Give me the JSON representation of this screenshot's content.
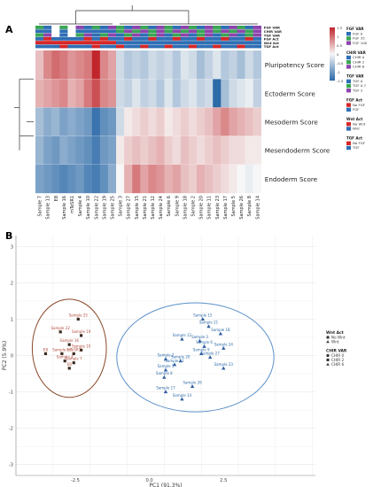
{
  "panel_labels": {
    "a": "A",
    "b": "B"
  },
  "chart_data": [
    {
      "type": "heatmap",
      "rows": [
        "Pluripotency Score",
        "Ectoderm Score",
        "Mesoderm Score",
        "Mesendoderm Score",
        "Endoderm Score"
      ],
      "columns": [
        "Sample 7",
        "Sample 13",
        "E8",
        "Sample 16",
        "mTeSR1",
        "Sample 4",
        "Sample 10",
        "Sample 22",
        "Sample 19",
        "Sample 25",
        "Sample 3",
        "Sample 27",
        "Sample 15",
        "Sample 21",
        "Sample 12",
        "Sample 24",
        "Sample 6",
        "Sample 9",
        "Sample 18",
        "Sample 2",
        "Sample 20",
        "Sample 11",
        "Sample 23",
        "Sample 17",
        "Sample 5",
        "Sample 26",
        "Sample 8",
        "Sample 14"
      ],
      "values": [
        [
          0.4,
          0.8,
          1.0,
          0.9,
          0.7,
          0.8,
          0.9,
          1.5,
          0.8,
          0.6,
          -0.3,
          -0.5,
          -0.4,
          -0.5,
          -0.3,
          -0.4,
          -0.3,
          -0.5,
          -0.2,
          -0.3,
          -0.6,
          -0.4,
          -0.2,
          -0.5,
          -0.4,
          -0.6,
          -0.3,
          -0.5
        ],
        [
          0.5,
          0.6,
          0.7,
          0.8,
          0.5,
          0.6,
          0.9,
          1.2,
          0.8,
          0.7,
          -0.3,
          -0.4,
          -0.2,
          -0.4,
          -0.3,
          -0.5,
          -0.2,
          -0.5,
          -0.3,
          -0.2,
          -0.4,
          -0.3,
          -1.6,
          -0.6,
          -0.3,
          -0.2,
          -0.1,
          -0.4
        ],
        [
          -0.6,
          -0.8,
          -0.7,
          -0.9,
          -0.8,
          -0.9,
          -1.0,
          -1.4,
          -1.1,
          -1.0,
          -0.3,
          0.1,
          0.2,
          0.3,
          0.2,
          0.3,
          0.1,
          0.2,
          0.3,
          0.2,
          0.3,
          0.4,
          0.6,
          0.8,
          0.6,
          0.5,
          0.4,
          0.3
        ],
        [
          -0.7,
          -0.9,
          -1.0,
          -0.8,
          -0.9,
          -1.0,
          -1.1,
          -1.3,
          -1.0,
          -0.9,
          0.1,
          0.3,
          0.4,
          0.3,
          0.4,
          0.5,
          0.3,
          0.2,
          0.4,
          0.3,
          0.2,
          0.3,
          0.4,
          0.3,
          0.2,
          0.2,
          0.1,
          0.1
        ],
        [
          -0.9,
          -1.0,
          -1.1,
          -1.2,
          -1.1,
          -1.0,
          -1.2,
          -1.3,
          -1.1,
          -0.8,
          0.0,
          0.5,
          0.9,
          0.6,
          0.8,
          0.7,
          0.5,
          0.6,
          0.4,
          0.3,
          0.5,
          0.4,
          0.3,
          0.2,
          0.1,
          0.0,
          -0.1,
          0.0
        ]
      ],
      "colorscale": {
        "min": -1.5,
        "max": 1.5,
        "low": "#2c6aa8",
        "mid": "#f7f7f7",
        "high": "#c0262b",
        "ticks": [
          "1.5",
          "1",
          "0.5",
          "0",
          "-0.5",
          "-1",
          "-1.5"
        ]
      },
      "annotation_rows": [
        "FGF VAR",
        "CHIR VAR",
        "TGF VAR",
        "FGF Act",
        "Wnt Act",
        "TGF Act"
      ],
      "annotation_colors": {
        "FGF VAR": {
          "FGF 0": "#2f6fb5",
          "FGF 35": "#3aa655",
          "FGF 100": "#8e44ad"
        },
        "CHIR VAR": {
          "CHIR 0": "#2f6fb5",
          "CHIR 2": "#3aa655",
          "CHIR 6": "#8e44ad"
        },
        "TGF VAR": {
          "TGF 0": "#2f6fb5",
          "TGF 0.7": "#3aa655",
          "TGF 2": "#8e44ad"
        },
        "FGF Act": {
          "No FGF": "#d62728",
          "FGF": "#2f6fb5"
        },
        "Wnt Act": {
          "No Wnt": "#d62728",
          "Wnt": "#2f6fb5"
        },
        "TGF Act": {
          "No FGF": "#d62728",
          "TGF": "#2f6fb5"
        }
      },
      "annotation_values": {
        "FGF VAR": [
          "FGF 35",
          "FGF 0",
          "",
          "FGF 35",
          "",
          "FGF 100",
          "FGF 0",
          "FGF 35",
          "FGF 0",
          "FGF 100",
          "FGF 35",
          "FGF 0",
          "FGF 100",
          "FGF 35",
          "FGF 0",
          "FGF 100",
          "FGF 35",
          "FGF 0",
          "FGF 100",
          "FGF 35",
          "FGF 0",
          "FGF 100",
          "FGF 35",
          "FGF 0",
          "FGF 100",
          "FGF 35",
          "FGF 0",
          "FGF 100"
        ],
        "CHIR VAR": [
          "CHIR 0",
          "CHIR 0",
          "",
          "CHIR 0",
          "",
          "CHIR 0",
          "CHIR 0",
          "CHIR 0",
          "CHIR 0",
          "CHIR 0",
          "CHIR 2",
          "CHIR 6",
          "CHIR 2",
          "CHIR 6",
          "CHIR 2",
          "CHIR 6",
          "CHIR 2",
          "CHIR 6",
          "CHIR 2",
          "CHIR 6",
          "CHIR 2",
          "CHIR 6",
          "CHIR 2",
          "CHIR 6",
          "CHIR 2",
          "CHIR 6",
          "CHIR 2",
          "CHIR 6"
        ],
        "TGF VAR": [
          "TGF 0.7",
          "TGF 2",
          "",
          "TGF 0",
          "",
          "TGF 0.7",
          "TGF 2",
          "TGF 0",
          "TGF 0.7",
          "TGF 2",
          "TGF 0",
          "TGF 0.7",
          "TGF 2",
          "TGF 0",
          "TGF 0.7",
          "TGF 2",
          "TGF 0",
          "TGF 0.7",
          "TGF 2",
          "TGF 0",
          "TGF 0.7",
          "TGF 2",
          "TGF 0",
          "TGF 0.7",
          "TGF 2",
          "TGF 0",
          "TGF 0.7",
          "TGF 2"
        ],
        "FGF Act": [
          "FGF",
          "No FGF",
          "FGF",
          "FGF",
          "FGF",
          "FGF",
          "No FGF",
          "FGF",
          "No FGF",
          "FGF",
          "FGF",
          "No FGF",
          "FGF",
          "FGF",
          "No FGF",
          "FGF",
          "FGF",
          "No FGF",
          "FGF",
          "FGF",
          "No FGF",
          "FGF",
          "FGF",
          "No FGF",
          "FGF",
          "FGF",
          "No FGF",
          "FGF"
        ],
        "Wnt Act": [
          "No Wnt",
          "No Wnt",
          "No Wnt",
          "No Wnt",
          "No Wnt",
          "No Wnt",
          "No Wnt",
          "No Wnt",
          "No Wnt",
          "No Wnt",
          "Wnt",
          "Wnt",
          "Wnt",
          "Wnt",
          "Wnt",
          "Wnt",
          "Wnt",
          "Wnt",
          "Wnt",
          "Wnt",
          "Wnt",
          "Wnt",
          "Wnt",
          "Wnt",
          "Wnt",
          "Wnt",
          "Wnt",
          "Wnt"
        ],
        "TGF Act": [
          "TGF",
          "TGF",
          "TGF",
          "No FGF",
          "TGF",
          "TGF",
          "TGF",
          "No FGF",
          "TGF",
          "TGF",
          "No FGF",
          "TGF",
          "TGF",
          "No FGF",
          "TGF",
          "TGF",
          "No FGF",
          "TGF",
          "TGF",
          "No FGF",
          "TGF",
          "TGF",
          "No FGF",
          "TGF",
          "TGF",
          "No FGF",
          "TGF",
          "TGF"
        ]
      },
      "legends": [
        {
          "title": "FGF VAR",
          "items": [
            "FGF 0",
            "FGF 35",
            "FGF 100"
          ]
        },
        {
          "title": "CHIR VAR",
          "items": [
            "CHIR 0",
            "CHIR 2",
            "CHIR 6"
          ]
        },
        {
          "title": "TGF VAR",
          "items": [
            "TGF 0",
            "TGF 0.7",
            "TGF 2"
          ]
        },
        {
          "title": "FGF Act",
          "items": [
            "No FGF",
            "FGF"
          ]
        },
        {
          "title": "Wnt Act",
          "items": [
            "No Wnt",
            "Wnt"
          ]
        },
        {
          "title": "TGF Act",
          "items": [
            "No FGF",
            "TGF"
          ]
        }
      ]
    },
    {
      "type": "scatter",
      "xlabel": "PC1 (91.3%)",
      "ylabel": "PC2 (5.9%)",
      "xlim": [
        -4.5,
        5.6
      ],
      "ylim": [
        -3.3,
        3.3
      ],
      "x_ticks": [
        "-2.5",
        "0.0",
        "2.5"
      ],
      "x_tick_values": [
        -2.5,
        0.0,
        2.5
      ],
      "y_ticks": [
        "3",
        "2",
        "1",
        "0",
        "-1",
        "-2",
        "-3"
      ],
      "y_tick_values": [
        3,
        2,
        1,
        0,
        -1,
        -2,
        -3
      ],
      "grid": true,
      "legend_position": "right",
      "legend": [
        {
          "title": "Wnt Act",
          "items": [
            {
              "label": "No Wnt",
              "shape": "square"
            },
            {
              "label": "Wnt",
              "shape": "triangle"
            }
          ]
        },
        {
          "title": "CHIR VAR",
          "items": [
            {
              "label": "CHIR 0",
              "shape": "circle"
            },
            {
              "label": "CHIR 2",
              "shape": "square"
            },
            {
              "label": "CHIR 6",
              "shape": "triangle"
            }
          ]
        }
      ],
      "series": [
        {
          "name": "No Wnt",
          "color": "#b0483a",
          "points": [
            {
              "label": "Sample 25",
              "x": -2.4,
              "y": 1.0
            },
            {
              "label": "Sample 22",
              "x": -3.0,
              "y": 0.65
            },
            {
              "label": "Sample 19",
              "x": -2.3,
              "y": 0.55
            },
            {
              "label": "Sample 16",
              "x": -2.7,
              "y": 0.3
            },
            {
              "label": "Sample 10",
              "x": -2.3,
              "y": 0.15
            },
            {
              "label": "E8",
              "x": -3.5,
              "y": 0.05
            },
            {
              "label": "Sample 13",
              "x": -2.95,
              "y": 0.05
            },
            {
              "label": "mTeSR1",
              "x": -2.55,
              "y": 0.05
            },
            {
              "label": "Sample 4",
              "x": -2.85,
              "y": -0.15
            },
            {
              "label": "Sample 7",
              "x": -2.55,
              "y": -0.2
            },
            {
              "label": "E8",
              "x": -2.7,
              "y": -0.35
            }
          ]
        },
        {
          "name": "Wnt",
          "color": "#2c6aa8",
          "points": [
            {
              "label": "Sample 15",
              "x": 1.8,
              "y": 1.0
            },
            {
              "label": "Sample 21",
              "x": 2.0,
              "y": 0.8
            },
            {
              "label": "Sample 18",
              "x": 2.4,
              "y": 0.6
            },
            {
              "label": "Sample 12",
              "x": 1.1,
              "y": 0.45
            },
            {
              "label": "Sample 3",
              "x": 1.7,
              "y": 0.4
            },
            {
              "label": "Sample 6",
              "x": 1.85,
              "y": 0.25
            },
            {
              "label": "Sample 24",
              "x": 2.5,
              "y": 0.2
            },
            {
              "label": "Sample 9",
              "x": 1.75,
              "y": 0.05
            },
            {
              "label": "Sample 27",
              "x": 2.05,
              "y": -0.05
            },
            {
              "label": "Sample 2",
              "x": 0.55,
              "y": -0.1
            },
            {
              "label": "Sample 20",
              "x": 1.05,
              "y": -0.15
            },
            {
              "label": "Sample 11",
              "x": 0.85,
              "y": -0.25
            },
            {
              "label": "Sample 5",
              "x": 0.55,
              "y": -0.4
            },
            {
              "label": "Sample 23",
              "x": 2.5,
              "y": -0.35
            },
            {
              "label": "Sample 8",
              "x": 0.5,
              "y": -0.6
            },
            {
              "label": "Sample 26",
              "x": 1.45,
              "y": -0.85
            },
            {
              "label": "Sample 17",
              "x": 0.55,
              "y": -1.0
            },
            {
              "label": "Sample 14",
              "x": 1.1,
              "y": -1.2
            }
          ]
        }
      ],
      "ellipses": [
        {
          "group": "No Wnt",
          "cx": -2.7,
          "cy": 0.2,
          "rx": 1.25,
          "ry": 1.35,
          "color": "#8b4a2b"
        },
        {
          "group": "Wnt",
          "cx": 1.55,
          "cy": -0.05,
          "rx": 2.65,
          "ry": 1.5,
          "color": "#5b8fc9"
        }
      ]
    }
  ]
}
